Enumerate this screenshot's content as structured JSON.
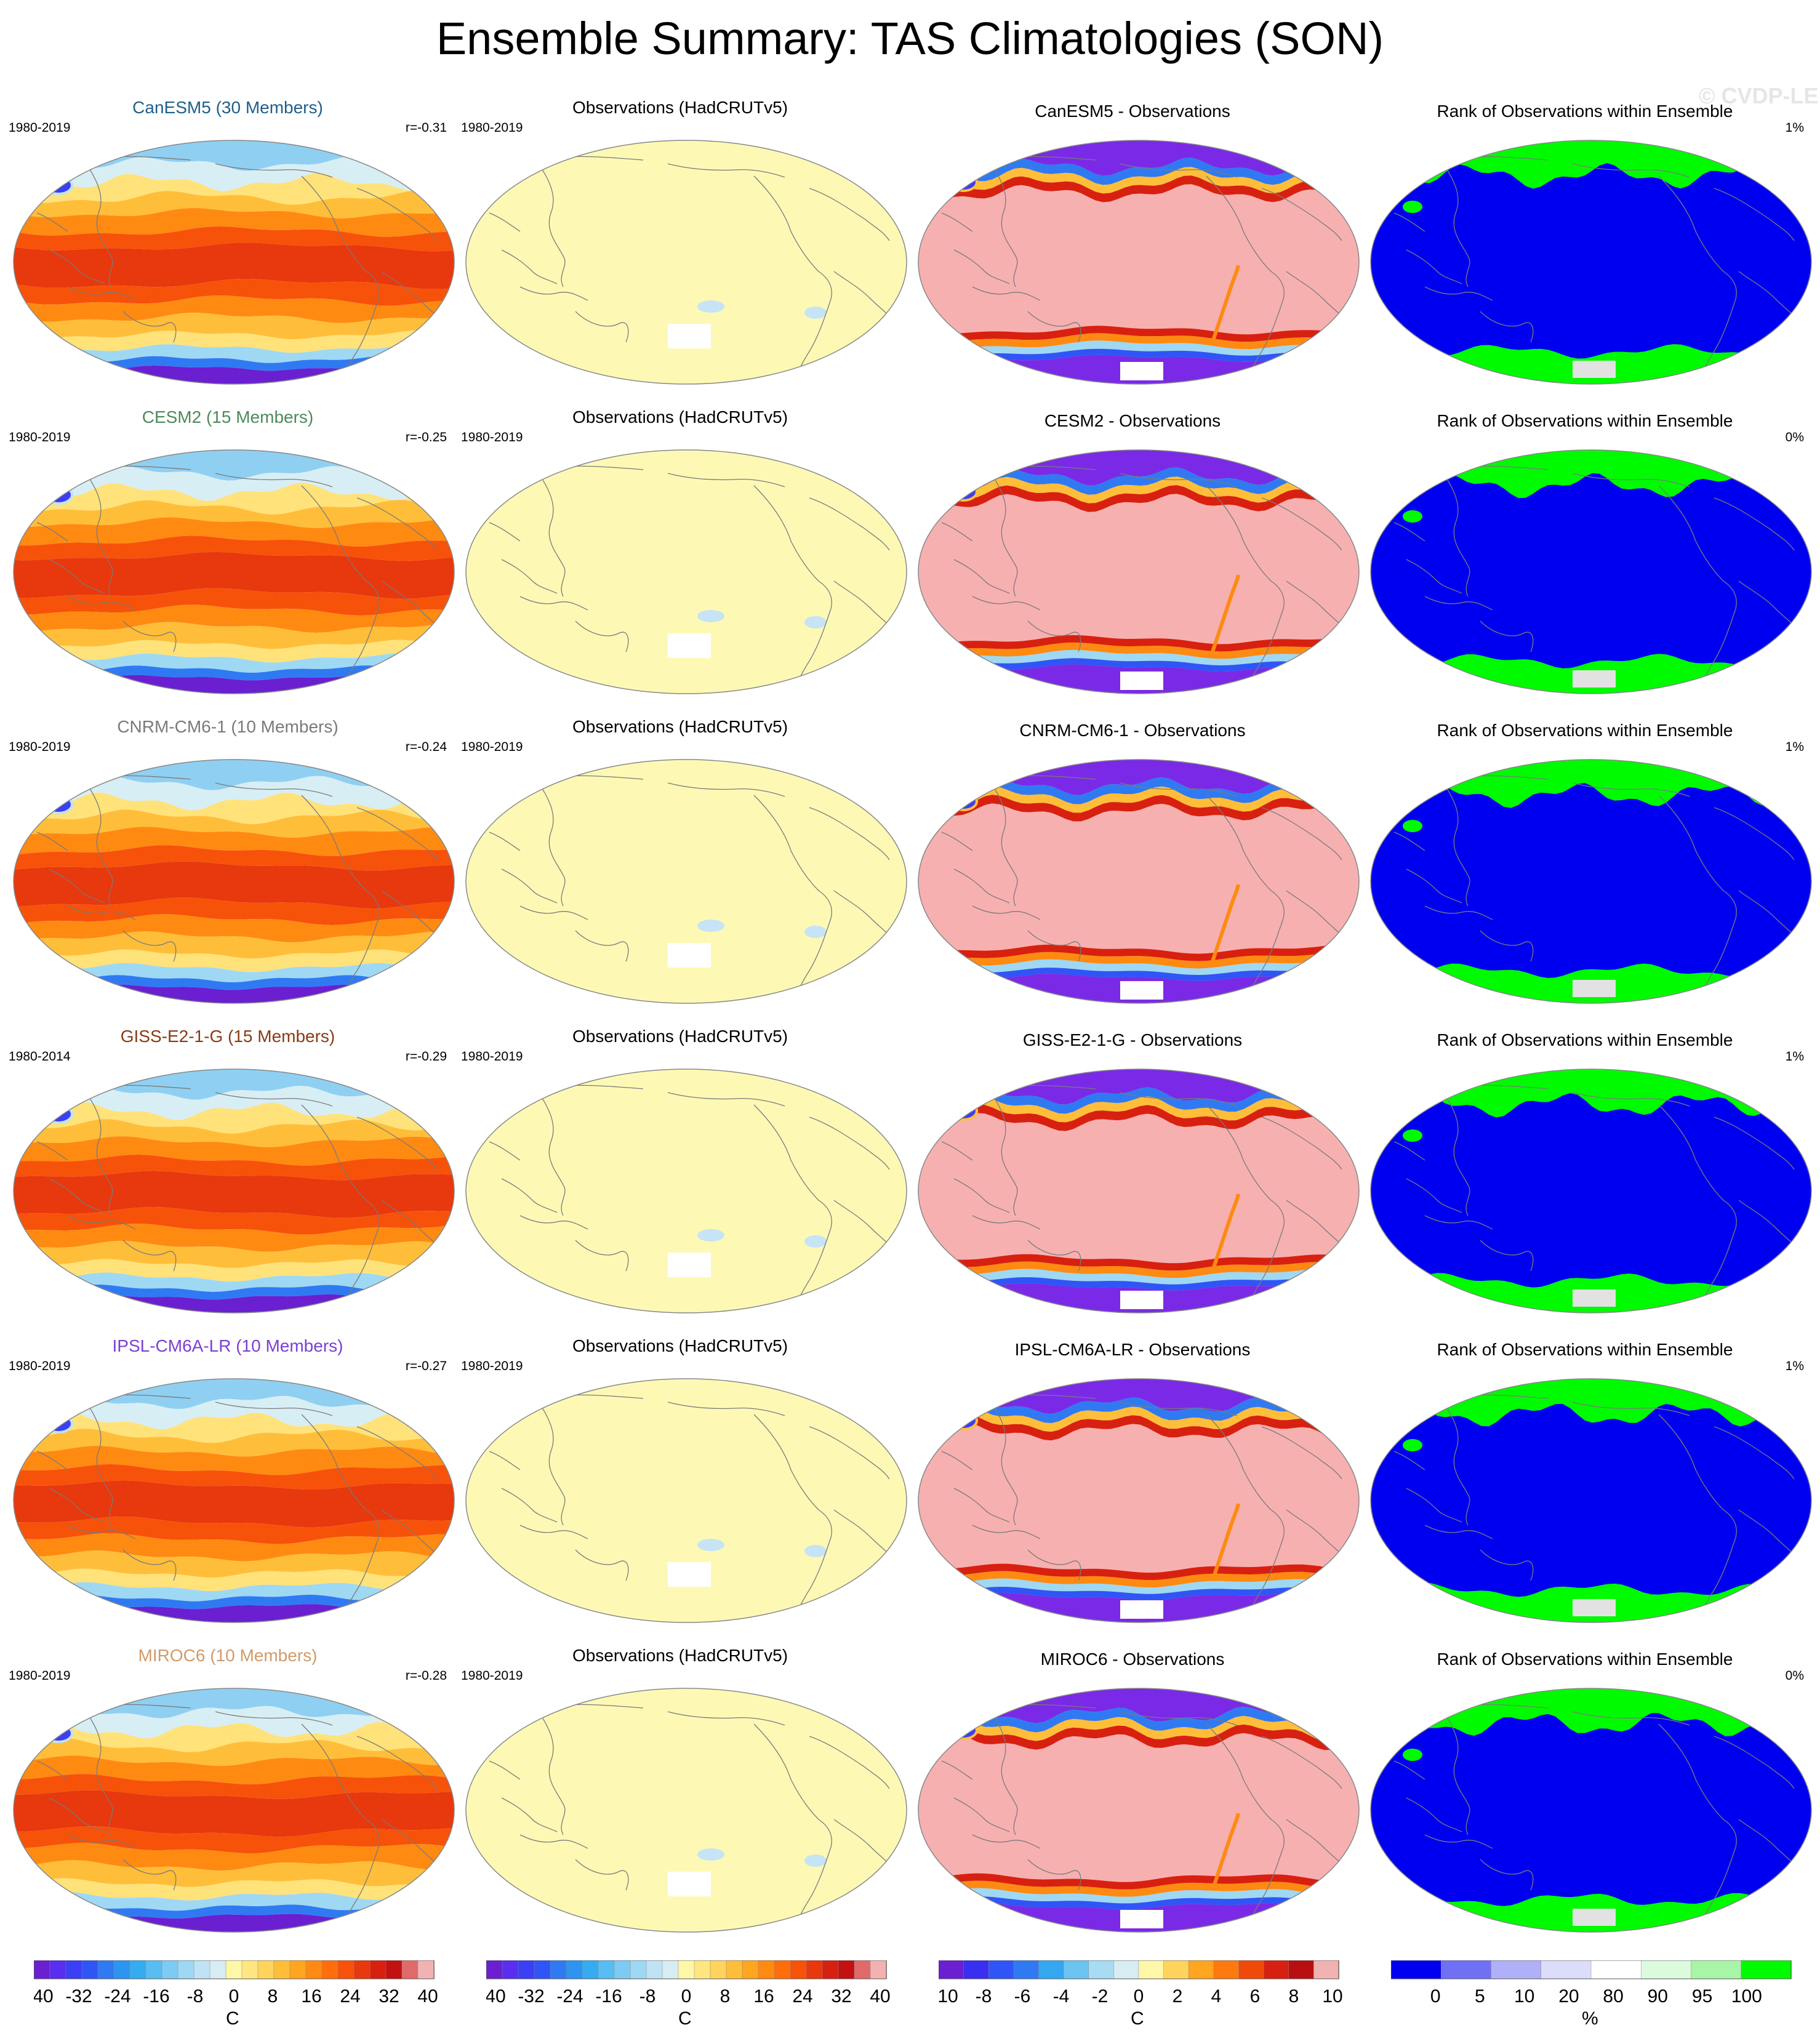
{
  "title": "Ensemble Summary: TAS Climatologies (SON)",
  "watermark": "© CVDP-LE",
  "colors": {
    "deficit": "#7a2ae6",
    "positive": "#f7b0b0",
    "obs_fill": "#fdf9b5",
    "obs_gap": "#c6e4f5",
    "rank_low": "#0000f0",
    "rank_high": "#00fa00",
    "missing": "#e2e2e2"
  },
  "rows": [
    {
      "model": "CanESM5 (30 Members)",
      "model_color": "#1f5f8b",
      "years": "1980-2019",
      "corr": "r=-0.31",
      "obs_title": "Observations (HadCRUTv5)",
      "obs_years": "1980-2019",
      "diff_title": "CanESM5 - Observations",
      "rank_title": "Rank of Observations within Ensemble",
      "rank_pct": "1%"
    },
    {
      "model": "CESM2 (15 Members)",
      "model_color": "#4d8a5a",
      "years": "1980-2019",
      "corr": "r=-0.25",
      "obs_title": "Observations (HadCRUTv5)",
      "obs_years": "1980-2019",
      "diff_title": "CESM2 - Observations",
      "rank_title": "Rank of Observations within Ensemble",
      "rank_pct": "0%"
    },
    {
      "model": "CNRM-CM6-1 (10 Members)",
      "model_color": "#7a7a7a",
      "years": "1980-2019",
      "corr": "r=-0.24",
      "obs_title": "Observations (HadCRUTv5)",
      "obs_years": "1980-2019",
      "diff_title": "CNRM-CM6-1 - Observations",
      "rank_title": "Rank of Observations within Ensemble",
      "rank_pct": "1%"
    },
    {
      "model": "GISS-E2-1-G (15 Members)",
      "model_color": "#8a3a14",
      "years": "1980-2014",
      "corr": "r=-0.29",
      "obs_title": "Observations (HadCRUTv5)",
      "obs_years": "1980-2019",
      "diff_title": "GISS-E2-1-G - Observations",
      "rank_title": "Rank of Observations within Ensemble",
      "rank_pct": "1%"
    },
    {
      "model": "IPSL-CM6A-LR (10 Members)",
      "model_color": "#7b3fd4",
      "years": "1980-2019",
      "corr": "r=-0.27",
      "obs_title": "Observations (HadCRUTv5)",
      "obs_years": "1980-2019",
      "diff_title": "IPSL-CM6A-LR - Observations",
      "rank_title": "Rank of Observations within Ensemble",
      "rank_pct": "1%"
    },
    {
      "model": "MIROC6 (10 Members)",
      "model_color": "#d29a6a",
      "years": "1980-2019",
      "corr": "r=-0.28",
      "obs_title": "Observations (HadCRUTv5)",
      "obs_years": "1980-2019",
      "diff_title": "MIROC6 - Observations",
      "rank_title": "Rank of Observations within Ensemble",
      "rank_pct": "0%"
    }
  ],
  "colorbars": [
    {
      "unit": "C",
      "ticks": [
        "-40",
        "-32",
        "-24",
        "-16",
        "-8",
        "0",
        "8",
        "16",
        "24",
        "32",
        "40"
      ],
      "colors": [
        "#6a1fd0",
        "#5a2ef0",
        "#3b3ff5",
        "#2f55f7",
        "#2f7af2",
        "#2d94f0",
        "#35acf0",
        "#58bdf2",
        "#7dcbf2",
        "#9fd8f3",
        "#bfe3f4",
        "#d7ecf3",
        "#fff7a8",
        "#ffe680",
        "#ffd35c",
        "#ffbe3a",
        "#ffa51f",
        "#ff8a12",
        "#ff6e0a",
        "#f7520a",
        "#e8380d",
        "#d82010",
        "#c31010",
        "#e06a6a",
        "#f3b2b2"
      ]
    },
    {
      "unit": "C",
      "ticks": [
        "-40",
        "-32",
        "-24",
        "-16",
        "-8",
        "0",
        "8",
        "16",
        "24",
        "32",
        "40"
      ],
      "colors": [
        "#6a1fd0",
        "#5a2ef0",
        "#3b3ff5",
        "#2f55f7",
        "#2f7af2",
        "#2d94f0",
        "#35acf0",
        "#58bdf2",
        "#7dcbf2",
        "#9fd8f3",
        "#bfe3f4",
        "#d7ecf3",
        "#fff7a8",
        "#ffe680",
        "#ffd35c",
        "#ffbe3a",
        "#ffa51f",
        "#ff8a12",
        "#ff6e0a",
        "#f7520a",
        "#e8380d",
        "#d82010",
        "#c31010",
        "#e06a6a",
        "#f3b2b2"
      ]
    },
    {
      "unit": "C",
      "ticks": [
        "-10",
        "-8",
        "-6",
        "-4",
        "-2",
        "0",
        "2",
        "4",
        "6",
        "8",
        "10"
      ],
      "colors": [
        "#6a1fd0",
        "#3a2ef0",
        "#2f55f7",
        "#2f7af2",
        "#35a6f0",
        "#6cc4f2",
        "#a7dcf3",
        "#d7ecf3",
        "#fff7a8",
        "#ffd35c",
        "#ffa51f",
        "#ff7a0e",
        "#f04a0b",
        "#d82010",
        "#b81010",
        "#f3b2b2"
      ]
    },
    {
      "unit": "%",
      "ticks": [
        "0",
        "5",
        "10",
        "20",
        "80",
        "90",
        "95",
        "100"
      ],
      "colors": [
        "#0000f0",
        "#7070f5",
        "#b0b0f8",
        "#dcdcfb",
        "#ffffff",
        "#dcfbdc",
        "#a8f5a8",
        "#00fa00"
      ]
    }
  ]
}
